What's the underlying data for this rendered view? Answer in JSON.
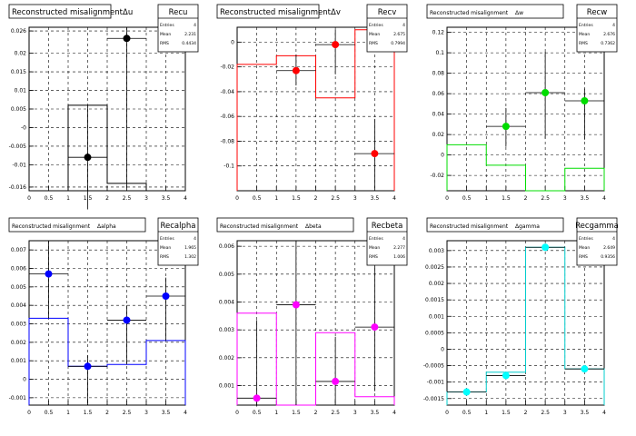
{
  "chart_data": [
    {
      "type": "scatter",
      "title": "Reconstructed misalignmentΔu",
      "stats": {
        "name": "Recu",
        "entries_label": "Entries",
        "entries": "4",
        "mean_label": "Mean",
        "mean": "2.231",
        "rms_label": "RMS",
        "rms": "0.4434"
      },
      "xlim": [
        0,
        4
      ],
      "xticks": [
        "0",
        "0.5",
        "1",
        "1.5",
        "2",
        "2.5",
        "3",
        "3.5",
        "4"
      ],
      "ylim": [
        -0.017,
        0.027
      ],
      "yticks": [
        {
          "v": 0.026,
          "label": "0.026"
        },
        {
          "v": 0.02,
          "label": "0.02"
        },
        {
          "v": 0.015,
          "label": "0.015"
        },
        {
          "v": 0.01,
          "label": "0.01"
        },
        {
          "v": 0.005,
          "label": "0.005"
        },
        {
          "v": 0,
          "label": "-0"
        },
        {
          "v": -0.005,
          "label": "-0.005"
        },
        {
          "v": -0.01,
          "label": "-0.01"
        },
        {
          "v": -0.016,
          "label": "-0.016"
        }
      ],
      "color": "#000000",
      "hist_color": "#000000",
      "hist": [
        {
          "x0": 1,
          "x1": 2,
          "y": 0.006
        },
        {
          "x0": 2,
          "x1": 3,
          "y": -0.015
        }
      ],
      "points": [
        {
          "x": 1.5,
          "y": -0.008,
          "yerr_lo": 0.014,
          "yerr_hi": 0.014
        },
        {
          "x": 2.5,
          "y": 0.024,
          "yerr_lo": 0.04,
          "yerr_hi": 0.003
        }
      ]
    },
    {
      "type": "scatter",
      "title": "Reconstructed misalignmentΔv",
      "stats": {
        "name": "Recv",
        "entries_label": "Entries",
        "entries": "4",
        "mean_label": "Mean",
        "mean": "2.675",
        "rms_label": "RMS",
        "rms": "0.7994"
      },
      "xlim": [
        0,
        4
      ],
      "xticks": [
        "0",
        "0.5",
        "1",
        "1.5",
        "2",
        "2.5",
        "3",
        "3.5",
        "4"
      ],
      "ylim": [
        -0.12,
        0.012
      ],
      "yticks": [
        {
          "v": 0,
          "label": "0"
        },
        {
          "v": -0.02,
          "label": "-0.02"
        },
        {
          "v": -0.04,
          "label": "-0.04"
        },
        {
          "v": -0.06,
          "label": "-0.06"
        },
        {
          "v": -0.08,
          "label": "-0.08"
        },
        {
          "v": -0.1,
          "label": "-0.1"
        }
      ],
      "color": "#ff0000",
      "hist_color": "#ff0000",
      "hist": [
        {
          "x0": 0,
          "x1": 1,
          "y": -0.018
        },
        {
          "x0": 1,
          "x1": 2,
          "y": -0.011
        },
        {
          "x0": 2,
          "x1": 3,
          "y": -0.045
        },
        {
          "x0": 3,
          "x1": 4,
          "y": 0.01
        }
      ],
      "points": [
        {
          "x": 1.5,
          "y": -0.023,
          "yerr_lo": 0.012,
          "yerr_hi": 0.013
        },
        {
          "x": 2.5,
          "y": -0.002,
          "yerr_lo": 0.024,
          "yerr_hi": 0.012
        },
        {
          "x": 3.5,
          "y": -0.09,
          "yerr_lo": 0.028,
          "yerr_hi": 0.028
        }
      ]
    },
    {
      "type": "scatter",
      "title": "Reconstructed misalignment",
      "title_extra": "Δw",
      "stats": {
        "name": "Recw",
        "entries_label": "Entries",
        "entries": "4",
        "mean_label": "Mean",
        "mean": "2.676",
        "rms_label": "RMS",
        "rms": "0.7362"
      },
      "xlim": [
        0,
        4
      ],
      "xticks": [
        "0",
        "0.5",
        "1",
        "1.5",
        "2",
        "2.5",
        "3",
        "3.5",
        "4"
      ],
      "ylim": [
        -0.035,
        0.125
      ],
      "yticks": [
        {
          "v": 0.12,
          "label": "0.12"
        },
        {
          "v": 0.1,
          "label": "0.1"
        },
        {
          "v": 0.08,
          "label": "0.08"
        },
        {
          "v": 0.06,
          "label": "0.06"
        },
        {
          "v": 0.04,
          "label": "0.04"
        },
        {
          "v": 0.02,
          "label": "0.02"
        },
        {
          "v": 0,
          "label": "0"
        },
        {
          "v": -0.02,
          "label": "-0.02"
        }
      ],
      "color": "#00dd00",
      "hist_color": "#00dd00",
      "hist": [
        {
          "x0": 0,
          "x1": 1,
          "y": 0.01
        },
        {
          "x0": 1,
          "x1": 2,
          "y": -0.01
        },
        {
          "x0": 2,
          "x1": 3,
          "y": -0.035
        },
        {
          "x0": 3,
          "x1": 4,
          "y": -0.013
        }
      ],
      "points": [
        {
          "x": 1.5,
          "y": 0.028,
          "yerr_lo": 0.02,
          "yerr_hi": 0.018
        },
        {
          "x": 2.5,
          "y": 0.061,
          "yerr_lo": 0.045,
          "yerr_hi": 0.04
        },
        {
          "x": 3.5,
          "y": 0.053,
          "yerr_lo": 0.038,
          "yerr_hi": 0.012
        }
      ]
    },
    {
      "type": "scatter",
      "title": "Reconstructed misalignment",
      "title_extra": "Δalpha",
      "stats": {
        "name": "Recalpha",
        "entries_label": "Entries",
        "entries": "4",
        "mean_label": "Mean",
        "mean": "1.965",
        "rms_label": "RMS",
        "rms": "1.302"
      },
      "xlim": [
        0,
        4
      ],
      "xticks": [
        "0",
        "0.5",
        "1",
        "1.5",
        "2",
        "2.5",
        "3",
        "3.5",
        "4"
      ],
      "ylim": [
        -0.0014,
        0.0075
      ],
      "yticks": [
        {
          "v": 0.007,
          "label": "0.007"
        },
        {
          "v": 0.006,
          "label": "0.006"
        },
        {
          "v": 0.005,
          "label": "0.005"
        },
        {
          "v": 0.004,
          "label": "0.004"
        },
        {
          "v": 0.003,
          "label": "0.003"
        },
        {
          "v": 0.002,
          "label": "0.002"
        },
        {
          "v": 0.001,
          "label": "0.001"
        },
        {
          "v": 0,
          "label": "0"
        },
        {
          "v": -0.001,
          "label": "-0.001"
        }
      ],
      "color": "#0000ff",
      "hist_color": "#0000ff",
      "hist": [
        {
          "x0": 0,
          "x1": 1,
          "y": 0.0033
        },
        {
          "x0": 1,
          "x1": 2,
          "y": 0.0007
        },
        {
          "x0": 2,
          "x1": 3,
          "y": 0.0008
        },
        {
          "x0": 3,
          "x1": 4,
          "y": 0.0021
        }
      ],
      "points": [
        {
          "x": 0.5,
          "y": 0.0057,
          "yerr_lo": 0.0024,
          "yerr_hi": 0.0018
        },
        {
          "x": 1.5,
          "y": 0.0007,
          "yerr_lo": 0.002,
          "yerr_hi": 0.0006
        },
        {
          "x": 2.5,
          "y": 0.0032,
          "yerr_lo": 0.0024,
          "yerr_hi": 0.0008
        },
        {
          "x": 3.5,
          "y": 0.0045,
          "yerr_lo": 0.0024,
          "yerr_hi": 0.001
        }
      ]
    },
    {
      "type": "scatter",
      "title": "Reconstructed misalignment",
      "title_extra": "Δbeta",
      "stats": {
        "name": "Recbeta",
        "entries_label": "Entries",
        "entries": "4",
        "mean_label": "Mean",
        "mean": "2.277",
        "rms_label": "RMS",
        "rms": "1.006"
      },
      "xlim": [
        0,
        4
      ],
      "xticks": [
        "0",
        "0.5",
        "1",
        "1.5",
        "2",
        "2.5",
        "3",
        "3.5",
        "4"
      ],
      "ylim": [
        0.0003,
        0.0062
      ],
      "yticks": [
        {
          "v": 0.006,
          "label": "0.006"
        },
        {
          "v": 0.005,
          "label": "0.005"
        },
        {
          "v": 0.004,
          "label": "0.004"
        },
        {
          "v": 0.003,
          "label": "0.003"
        },
        {
          "v": 0.002,
          "label": "0.002"
        },
        {
          "v": 0.001,
          "label": "0.001"
        }
      ],
      "color": "#ff00ff",
      "hist_color": "#ff00ff",
      "hist": [
        {
          "x0": 0,
          "x1": 1,
          "y": 0.0036
        },
        {
          "x0": 1,
          "x1": 2,
          "y": 0.0003
        },
        {
          "x0": 2,
          "x1": 3,
          "y": 0.0029
        },
        {
          "x0": 3,
          "x1": 4,
          "y": 0.0006
        }
      ],
      "points": [
        {
          "x": 0.5,
          "y": 0.00055,
          "yerr_lo": 0.0003,
          "yerr_hi": 0.0028
        },
        {
          "x": 1.5,
          "y": 0.0039,
          "yerr_lo": 0.0036,
          "yerr_hi": 0.0023
        },
        {
          "x": 2.5,
          "y": 0.00115,
          "yerr_lo": 0.0008,
          "yerr_hi": 0.0016
        },
        {
          "x": 3.5,
          "y": 0.0031,
          "yerr_lo": 0.0023,
          "yerr_hi": 0.0029
        }
      ]
    },
    {
      "type": "scatter",
      "title": "Reconstructed misalignment",
      "title_extra": "Δgamma",
      "stats": {
        "name": "Recgamma",
        "entries_label": "Entries",
        "entries": "4",
        "mean_label": "Mean",
        "mean": "2.649",
        "rms_label": "RMS",
        "rms": "0.9356"
      },
      "xlim": [
        0,
        4
      ],
      "xticks": [
        "0",
        "0.5",
        "1",
        "1.5",
        "2",
        "2.5",
        "3",
        "3.5",
        "4"
      ],
      "ylim": [
        -0.0017,
        0.0033
      ],
      "yticks": [
        {
          "v": 0.003,
          "label": "0.003"
        },
        {
          "v": 0.0025,
          "label": "0.0025"
        },
        {
          "v": 0.002,
          "label": "0.002"
        },
        {
          "v": 0.0015,
          "label": "0.0015"
        },
        {
          "v": 0.001,
          "label": "0.001"
        },
        {
          "v": 0.0005,
          "label": "0.0005"
        },
        {
          "v": 0,
          "label": "0"
        },
        {
          "v": -0.0005,
          "label": "-0.0005"
        },
        {
          "v": -0.001,
          "label": "-0.001"
        },
        {
          "v": -0.0015,
          "label": "-0.0015"
        }
      ],
      "color": "#00ffff",
      "hist_color": "#00cccc",
      "hist": [
        {
          "x0": 0,
          "x1": 1,
          "y": -0.0013
        },
        {
          "x0": 1,
          "x1": 2,
          "y": -0.0007
        },
        {
          "x0": 2,
          "x1": 3,
          "y": 0.0031
        },
        {
          "x0": 3,
          "x1": 4,
          "y": -0.0006
        }
      ],
      "points": [
        {
          "x": 0.5,
          "y": -0.0013,
          "yerr_lo": 0.0001,
          "yerr_hi": 0.0001
        },
        {
          "x": 1.5,
          "y": -0.0008,
          "yerr_lo": 0.0001,
          "yerr_hi": 0.0001
        },
        {
          "x": 2.5,
          "y": 0.0031,
          "yerr_lo": 0.0001,
          "yerr_hi": 0.0001
        },
        {
          "x": 3.5,
          "y": -0.0006,
          "yerr_lo": 0.0001,
          "yerr_hi": 0.0001
        }
      ]
    }
  ]
}
